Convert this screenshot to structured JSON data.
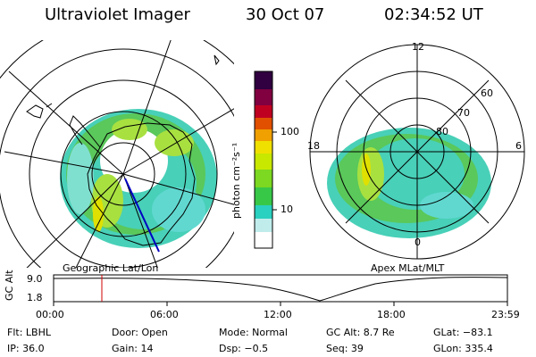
{
  "header": {
    "instrument": "Ultraviolet Imager",
    "date": "30 Oct 07",
    "time": "02:34:52 UT"
  },
  "left_panel": {
    "caption": "Geographic Lat/Lon"
  },
  "right_panel": {
    "caption": "Apex MLat/MLT",
    "mlt_labels": {
      "top": "12",
      "left": "18",
      "right": "6",
      "bottom": "0"
    },
    "lat_labels": [
      "60",
      "70",
      "80"
    ]
  },
  "colorbar": {
    "title": "photon cm⁻²s⁻¹",
    "ticks": [
      "100",
      "10"
    ],
    "colors": [
      "#ffffff",
      "#80e0e0",
      "#2ad0c0",
      "#48d030",
      "#a0e000",
      "#f0e000",
      "#f0a000",
      "#e05000",
      "#c00020",
      "#800040",
      "#300040"
    ]
  },
  "altitude_strip": {
    "axis_label": "GC Alt",
    "y_ticks": [
      "9.0",
      "1.8"
    ],
    "x_ticks": [
      "00:00",
      "06:00",
      "12:00",
      "18:00",
      "23:59"
    ],
    "marker_time": "02:34:52"
  },
  "info": {
    "flt": "Flt: LBHL",
    "door": "Door: Open",
    "mode": "Mode: Normal",
    "gc_alt": "GC Alt: 8.7 Re",
    "glat": "GLat: −83.1",
    "ip": "IP: 36.0",
    "gain": "Gain: 14",
    "dsp": "Dsp:   −0.5",
    "seq": "Seq: 39",
    "glon": "GLon: 335.4"
  }
}
